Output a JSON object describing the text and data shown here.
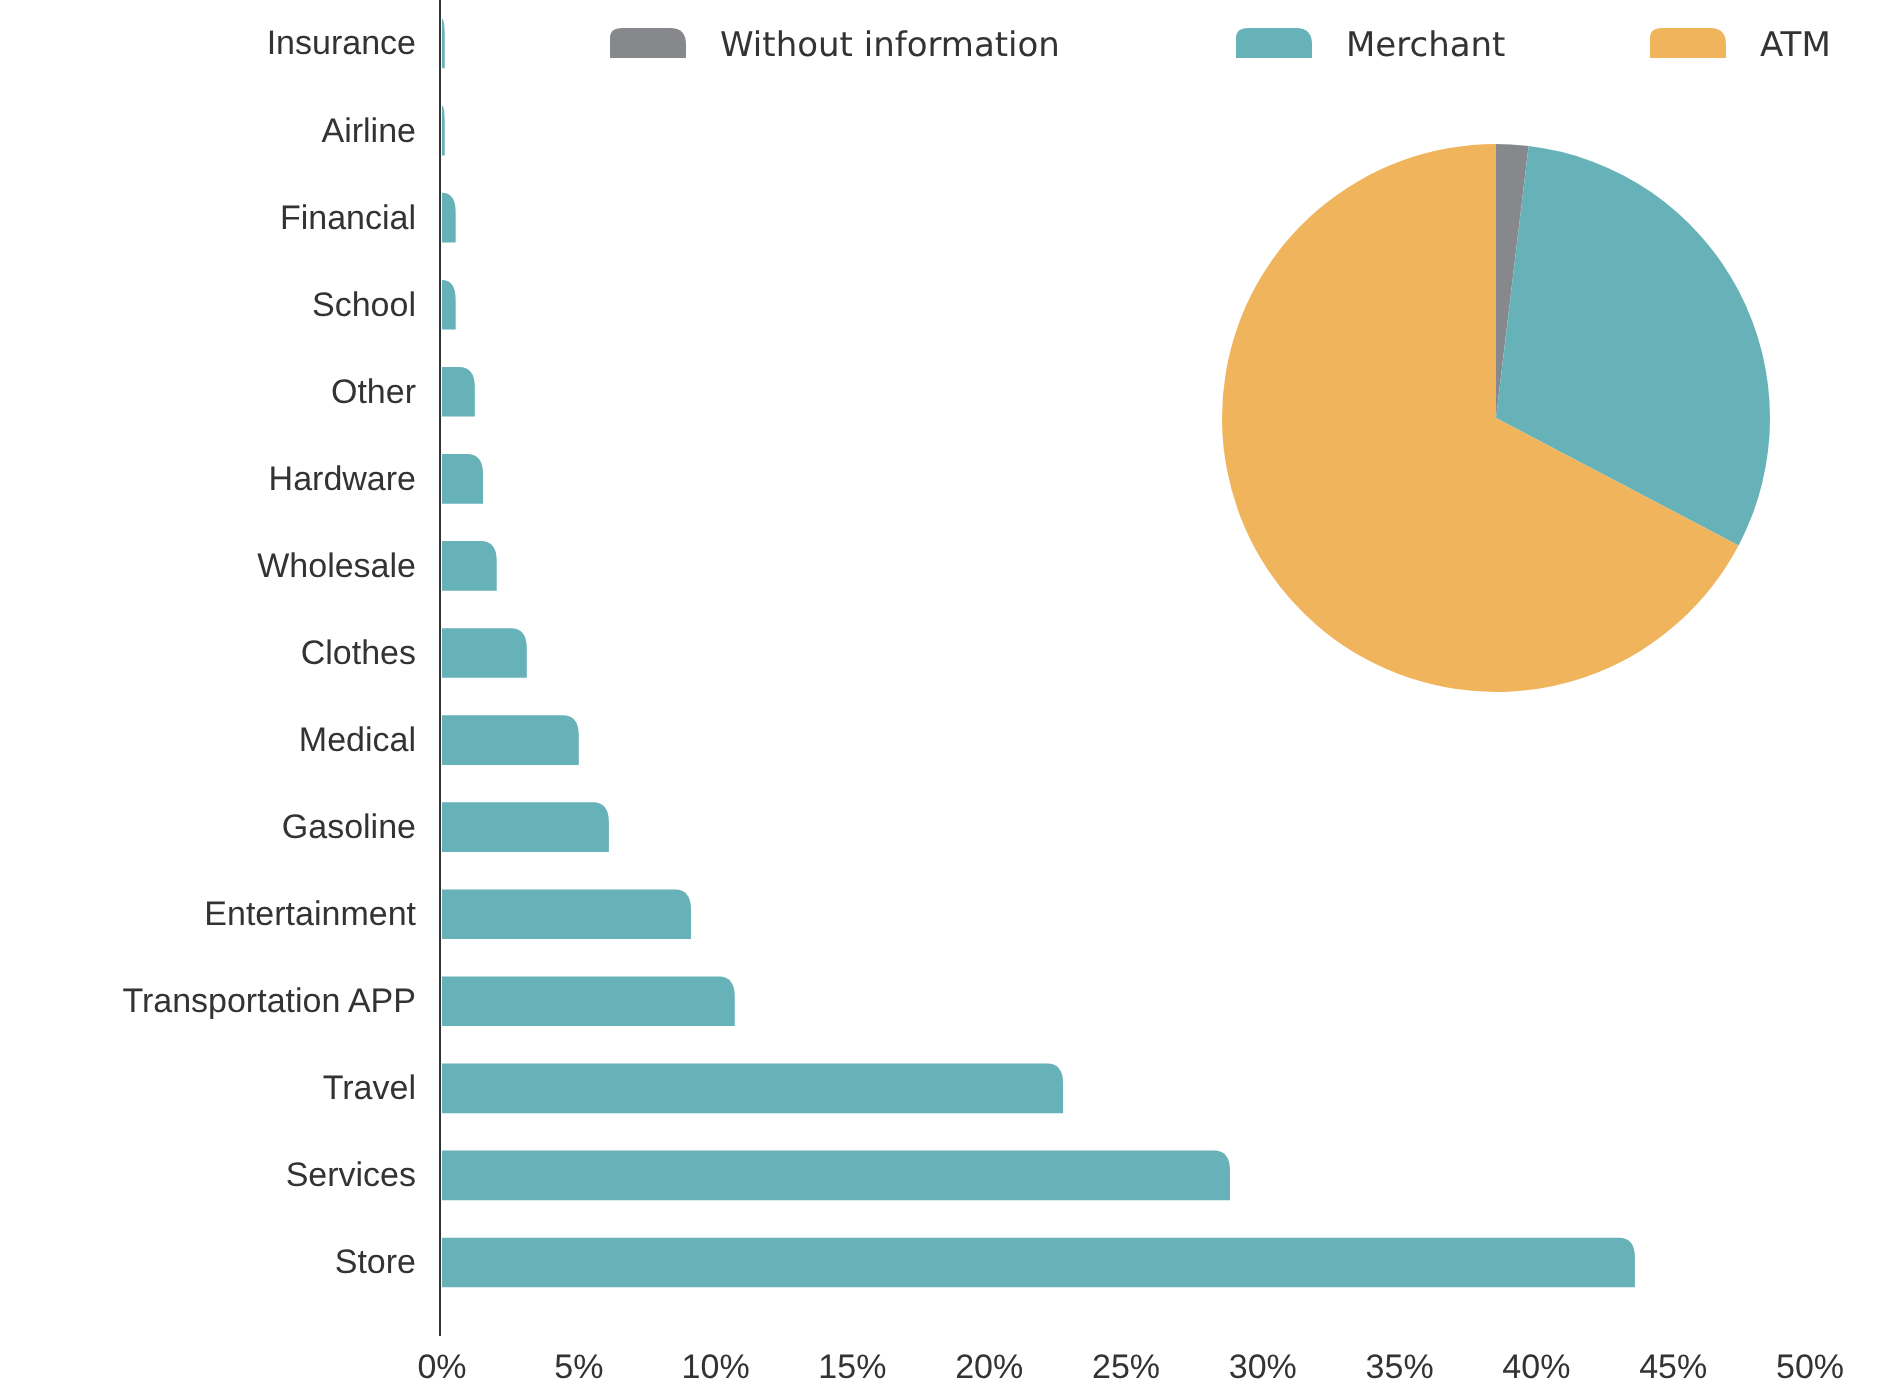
{
  "chart_data": [
    {
      "type": "bar",
      "orientation": "horizontal",
      "categories": [
        "Insurance",
        "Airline",
        "Financial",
        "School",
        "Other",
        "Hardware",
        "Wholesale",
        "Clothes",
        "Medical",
        "Gasoline",
        "Entertainment",
        "Transportation APP",
        "Travel",
        "Services",
        "Store"
      ],
      "values": [
        0.1,
        0.1,
        0.5,
        0.5,
        1.2,
        1.5,
        2.0,
        3.1,
        5.0,
        6.1,
        9.1,
        10.7,
        22.7,
        28.8,
        43.6
      ],
      "color": "#67b1b8",
      "xlim": [
        0,
        50
      ],
      "xticks": [
        {
          "value": 0,
          "label": "0%"
        },
        {
          "value": 5,
          "label": "5%"
        },
        {
          "value": 10,
          "label": "10%"
        },
        {
          "value": 15,
          "label": "15%"
        },
        {
          "value": 20,
          "label": "20%"
        },
        {
          "value": 25,
          "label": "25%"
        },
        {
          "value": 30,
          "label": "30%"
        },
        {
          "value": 35,
          "label": "35%"
        },
        {
          "value": 40,
          "label": "40%"
        },
        {
          "value": 45,
          "label": "45%"
        },
        {
          "value": 50,
          "label": "50%"
        }
      ],
      "grid": false
    },
    {
      "type": "pie",
      "categories": [
        "Without information",
        "Merchant",
        "ATM"
      ],
      "values": [
        1.9,
        30.8,
        67.3
      ],
      "colors": [
        "#87888c",
        "#67b1b8",
        "#efb45c"
      ],
      "legend": "top"
    }
  ]
}
